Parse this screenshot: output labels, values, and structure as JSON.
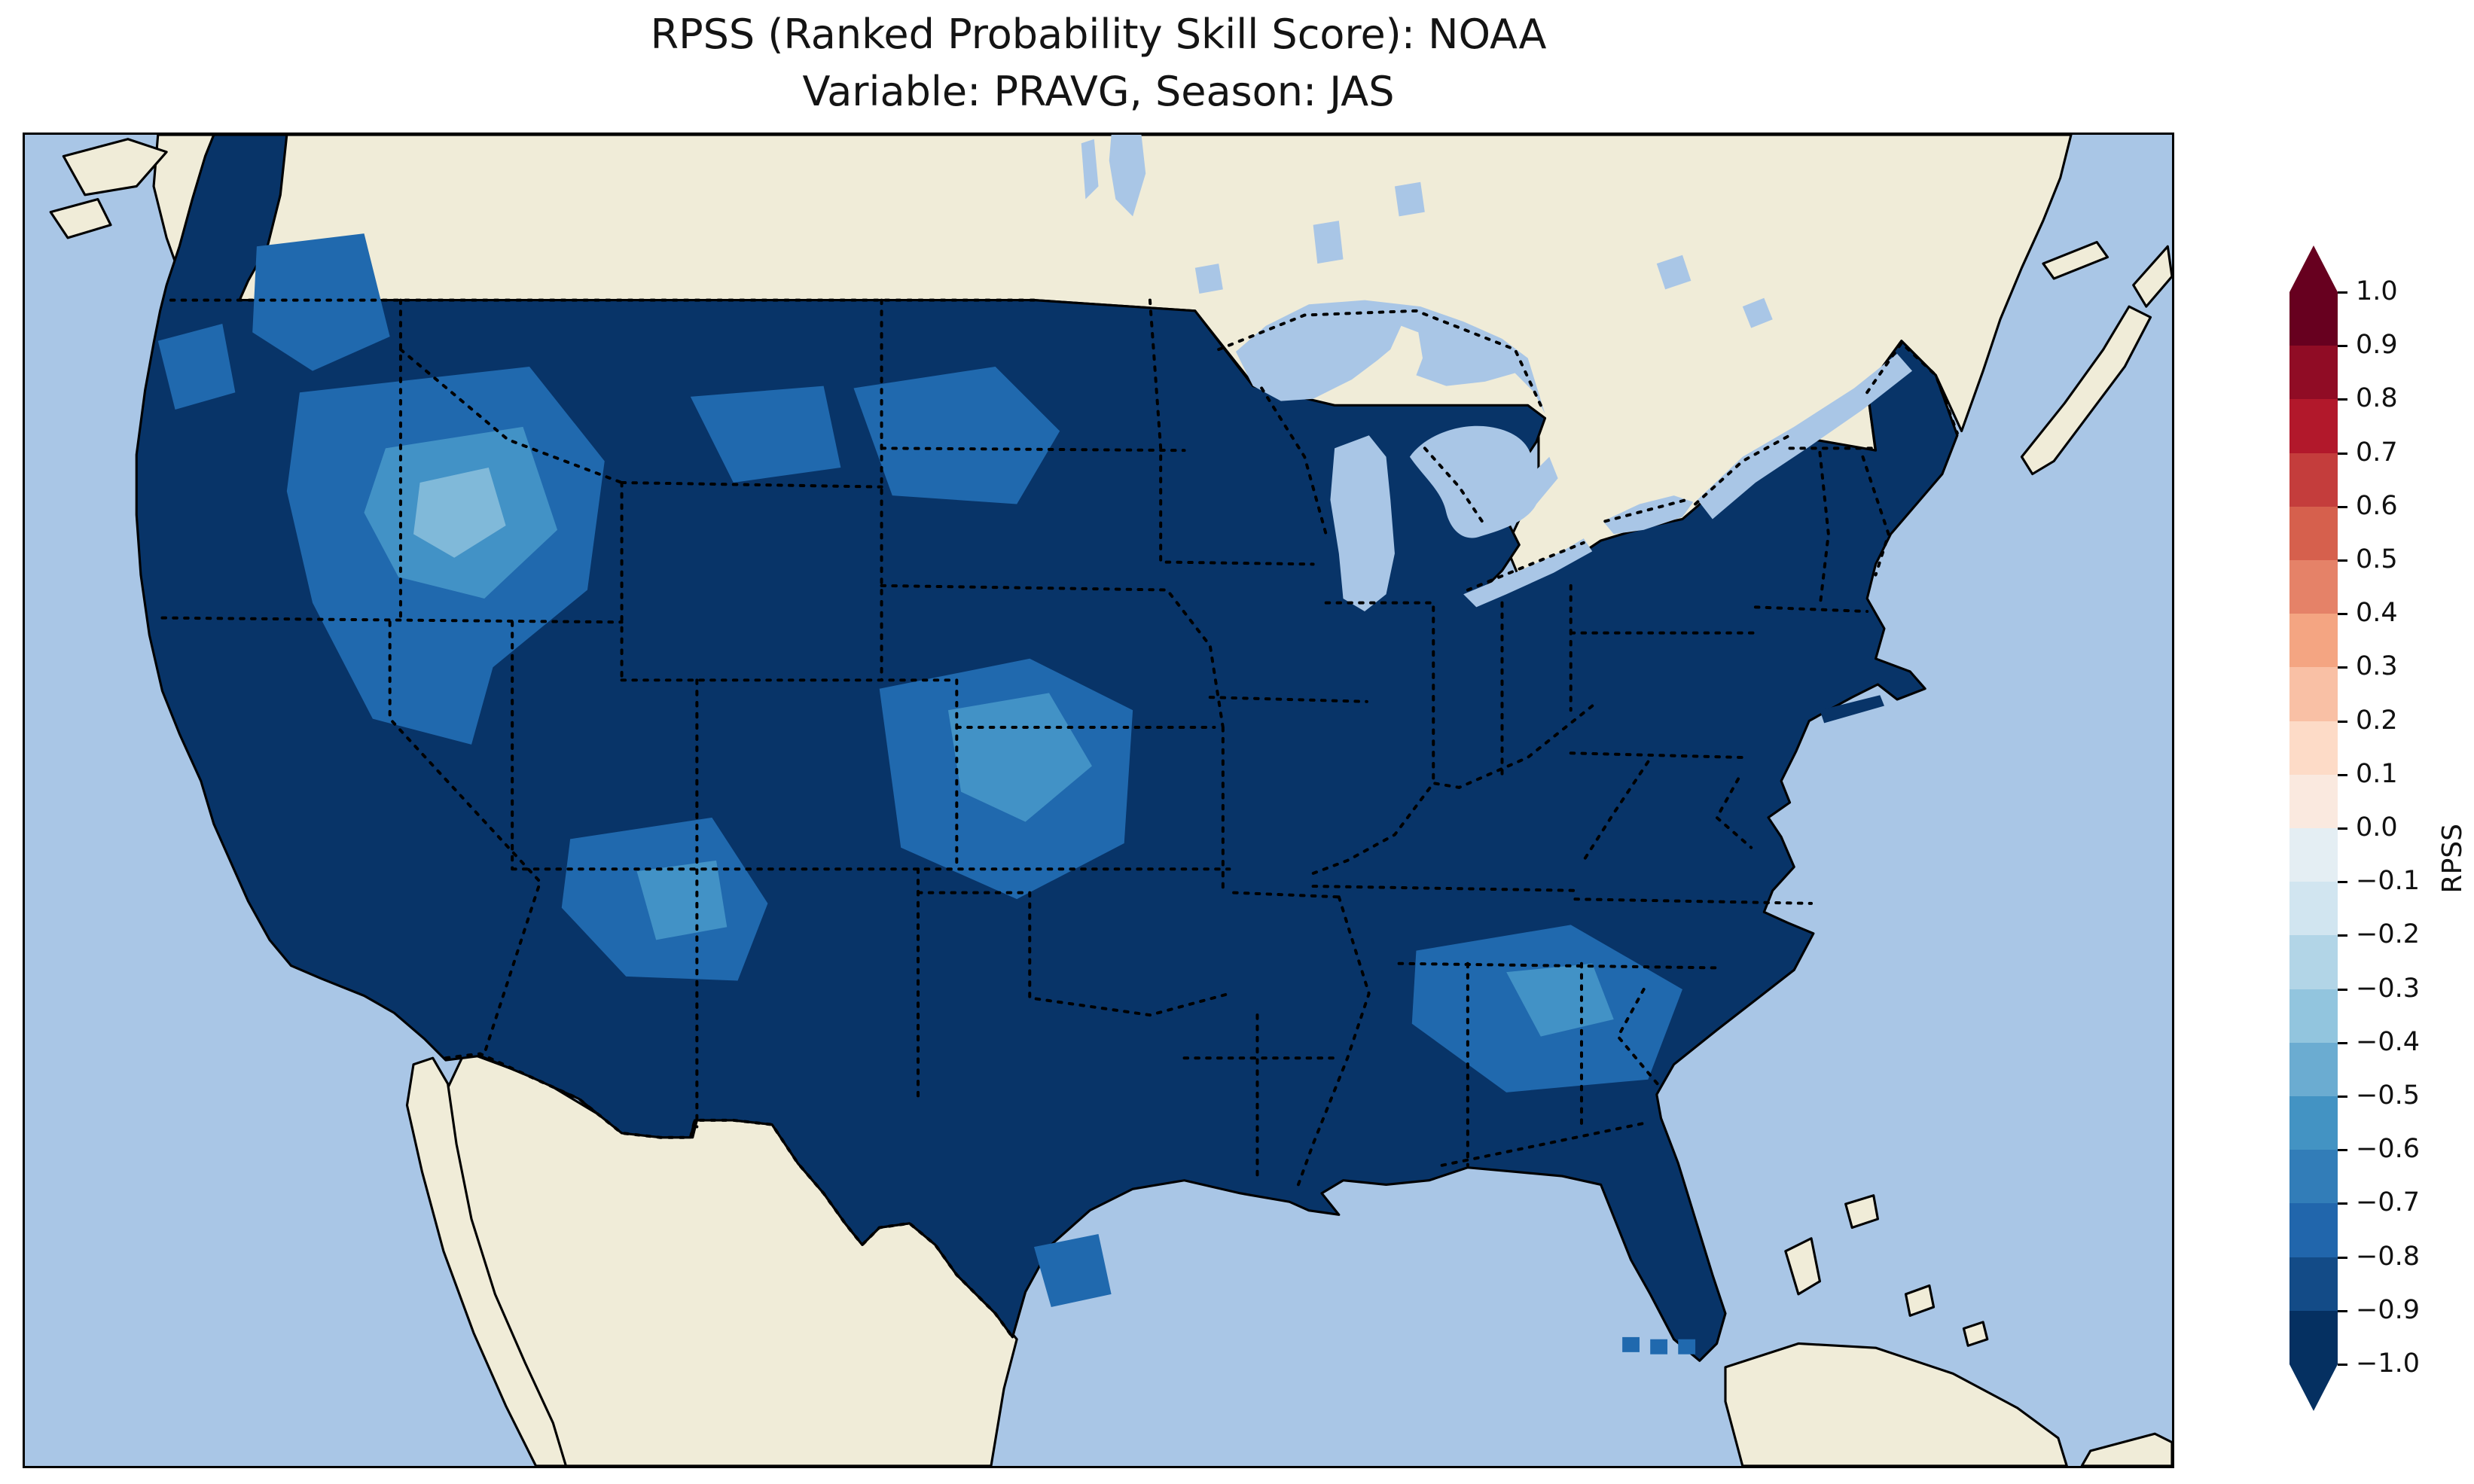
{
  "title": {
    "line1": "RPSS (Ranked Probability Skill Score): NOAA",
    "line2": "Variable: PRAVG, Season: JAS"
  },
  "colorbar": {
    "label": "RPSS",
    "tick_labels": [
      "1.0",
      "0.9",
      "0.8",
      "0.7",
      "0.6",
      "0.5",
      "0.4",
      "0.3",
      "0.2",
      "0.1",
      "0.0",
      "−0.1",
      "−0.2",
      "−0.3",
      "−0.4",
      "−0.5",
      "−0.6",
      "−0.7",
      "−0.8",
      "−0.9",
      "−1.0"
    ],
    "bin_colors_top_to_bottom": [
      "#67001f",
      "#900c25",
      "#b2182b",
      "#c43d3c",
      "#d6604d",
      "#e58268",
      "#f4a582",
      "#f9c0a5",
      "#fddbc7",
      "#fae9df",
      "#e4eef3",
      "#d1e5f0",
      "#b2d5e7",
      "#92c5de",
      "#6bacd1",
      "#4393c3",
      "#327db8",
      "#2166ac",
      "#134b87",
      "#053061"
    ],
    "extend_max_color": "#67001f",
    "extend_min_color": "#053061"
  },
  "map": {
    "region": "Contiguous United States",
    "colors": {
      "ocean": "#a9c6e6",
      "land": "#f0ecd8",
      "us_base": "#083468",
      "patch_mid": "#2069ae",
      "patch_light": "#4292c6",
      "patch_lightest": "#80b9d9"
    }
  },
  "chart_data": {
    "type": "heatmap",
    "subtype": "geographic gridded choropleth (CONUS)",
    "title": "RPSS (Ranked Probability Skill Score): NOAA",
    "subtitle": "Variable: PRAVG, Season: JAS",
    "source_label": "NOAA",
    "variable": "PRAVG",
    "season": "JAS",
    "metric": "RPSS",
    "colorbar": {
      "label": "RPSS",
      "min": -1.0,
      "max": 1.0,
      "step": 0.1,
      "colormap": "RdBu (red positive, blue negative)",
      "extend": "both",
      "ticks": [
        1.0,
        0.9,
        0.8,
        0.7,
        0.6,
        0.5,
        0.4,
        0.3,
        0.2,
        0.1,
        0.0,
        -0.1,
        -0.2,
        -0.3,
        -0.4,
        -0.5,
        -0.6,
        -0.7,
        -0.8,
        -0.9,
        -1.0
      ],
      "position": "right"
    },
    "observed_values": [
      {
        "area": "Most of the contiguous United States",
        "rpss": -0.95
      },
      {
        "area": "Western Washington / Pacific Northwest coast",
        "rpss": -0.75
      },
      {
        "area": "Interior West (E Oregon, Idaho, N Nevada, N Utah, W Wyoming)",
        "rpss": -0.65
      },
      {
        "area": "SE Idaho / NW Wyoming core patch",
        "rpss": -0.45
      },
      {
        "area": "Upper Midwest (Minnesota / Wisconsin)",
        "rpss": -0.8
      },
      {
        "area": "Central High Plains (Colorado / Nebraska / Kansas)",
        "rpss": -0.65
      },
      {
        "area": "Eastern New Mexico / Texas Panhandle",
        "rpss": -0.7
      },
      {
        "area": "Southeast (Georgia / Carolinas / Alabama)",
        "rpss": -0.75
      },
      {
        "area": "South Texas coast",
        "rpss": -0.7
      },
      {
        "area": "Florida Keys grid cells",
        "rpss": -0.7
      }
    ],
    "notes": "No positive (red) RPSS values visible anywhere over CONUS; entire field is negative (blue).",
    "grid": "off",
    "legend_position": "right vertical colorbar with pointed extend arrows at both ends"
  }
}
